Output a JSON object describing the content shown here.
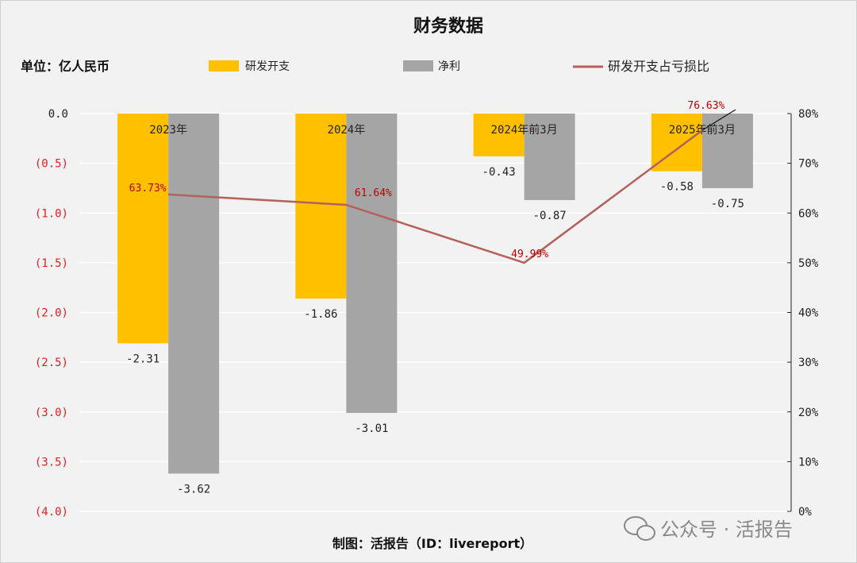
{
  "chart_data": {
    "type": "bar",
    "title": "财务数据",
    "unit_label": "单位：亿人民币",
    "categories": [
      "2023年",
      "2024年",
      "2024年前3月",
      "2025年前3月"
    ],
    "series": [
      {
        "name": "研发开支",
        "type": "bar",
        "axis": "left",
        "color": "#ffc000",
        "values": [
          -2.31,
          -1.86,
          -0.43,
          -0.58
        ],
        "labels": [
          "-2.31",
          "-1.86",
          "-0.43",
          "-0.58"
        ]
      },
      {
        "name": "净利",
        "type": "bar",
        "axis": "left",
        "color": "#a5a5a5",
        "values": [
          -3.62,
          -3.01,
          -0.87,
          -0.75
        ],
        "labels": [
          "-3.62",
          "-3.01",
          "-0.87",
          "-0.75"
        ]
      },
      {
        "name": "研发开支占亏损比",
        "type": "line",
        "axis": "right",
        "color": "#b5605a",
        "values": [
          63.73,
          61.64,
          49.99,
          76.63
        ],
        "labels": [
          "63.73%",
          "61.64%",
          "49.99%",
          "76.63%"
        ]
      }
    ],
    "y_left": {
      "min": -4.0,
      "max": 0.0,
      "step": 0.5,
      "tick_labels": [
        "0.0",
        "(0.5)",
        "(1.0)",
        "(1.5)",
        "(2.0)",
        "(2.5)",
        "(3.0)",
        "(3.5)",
        "(4.0)"
      ]
    },
    "y_right": {
      "min": 0,
      "max": 80,
      "step": 10,
      "tick_labels": [
        "0%",
        "10%",
        "20%",
        "30%",
        "40%",
        "50%",
        "60%",
        "70%",
        "80%"
      ]
    },
    "legend_position": "top",
    "grid": true
  },
  "colors": {
    "negative_tick": "#e02020",
    "pct_label": "#c00000",
    "axis_black": "#222222"
  },
  "footer": "制图：活报告（ID：livereport）",
  "watermark": "公众号 · 活报告",
  "watermark_icon": "wechat-icon"
}
